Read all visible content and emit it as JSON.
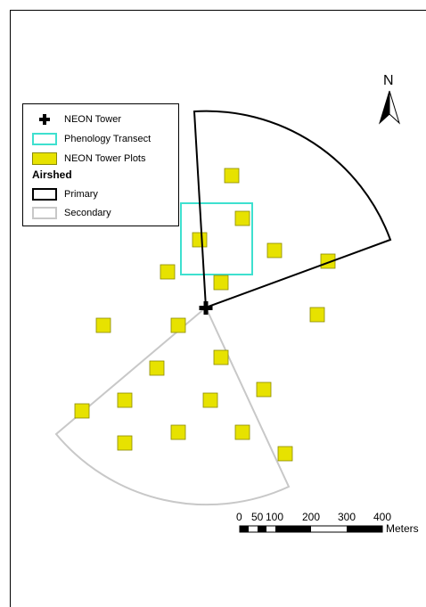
{
  "legend": {
    "items": [
      {
        "label": "NEON Tower",
        "symbol": "cross",
        "color": "#000000"
      },
      {
        "label": "Phenology Transect",
        "symbol": "outline-box",
        "color": "#3ee0cf"
      },
      {
        "label": "NEON Tower Plots",
        "symbol": "filled-box",
        "color": "#e7e200"
      }
    ],
    "airshed_heading": "Airshed",
    "airshed_items": [
      {
        "label": "Primary",
        "color": "#000000"
      },
      {
        "label": "Secondary",
        "color": "#c8c8c8"
      }
    ]
  },
  "north_arrow": {
    "label": "N"
  },
  "scale_bar": {
    "ticks": [
      "0",
      "50",
      "100",
      "200",
      "300",
      "400"
    ],
    "unit": "Meters"
  },
  "colors": {
    "plot_fill": "#e7e200",
    "plot_stroke": "#8a8a00",
    "transect": "#3ee0cf",
    "primary_airshed": "#000000",
    "secondary_airshed": "#c8c8c8",
    "tower": "#000000"
  }
}
